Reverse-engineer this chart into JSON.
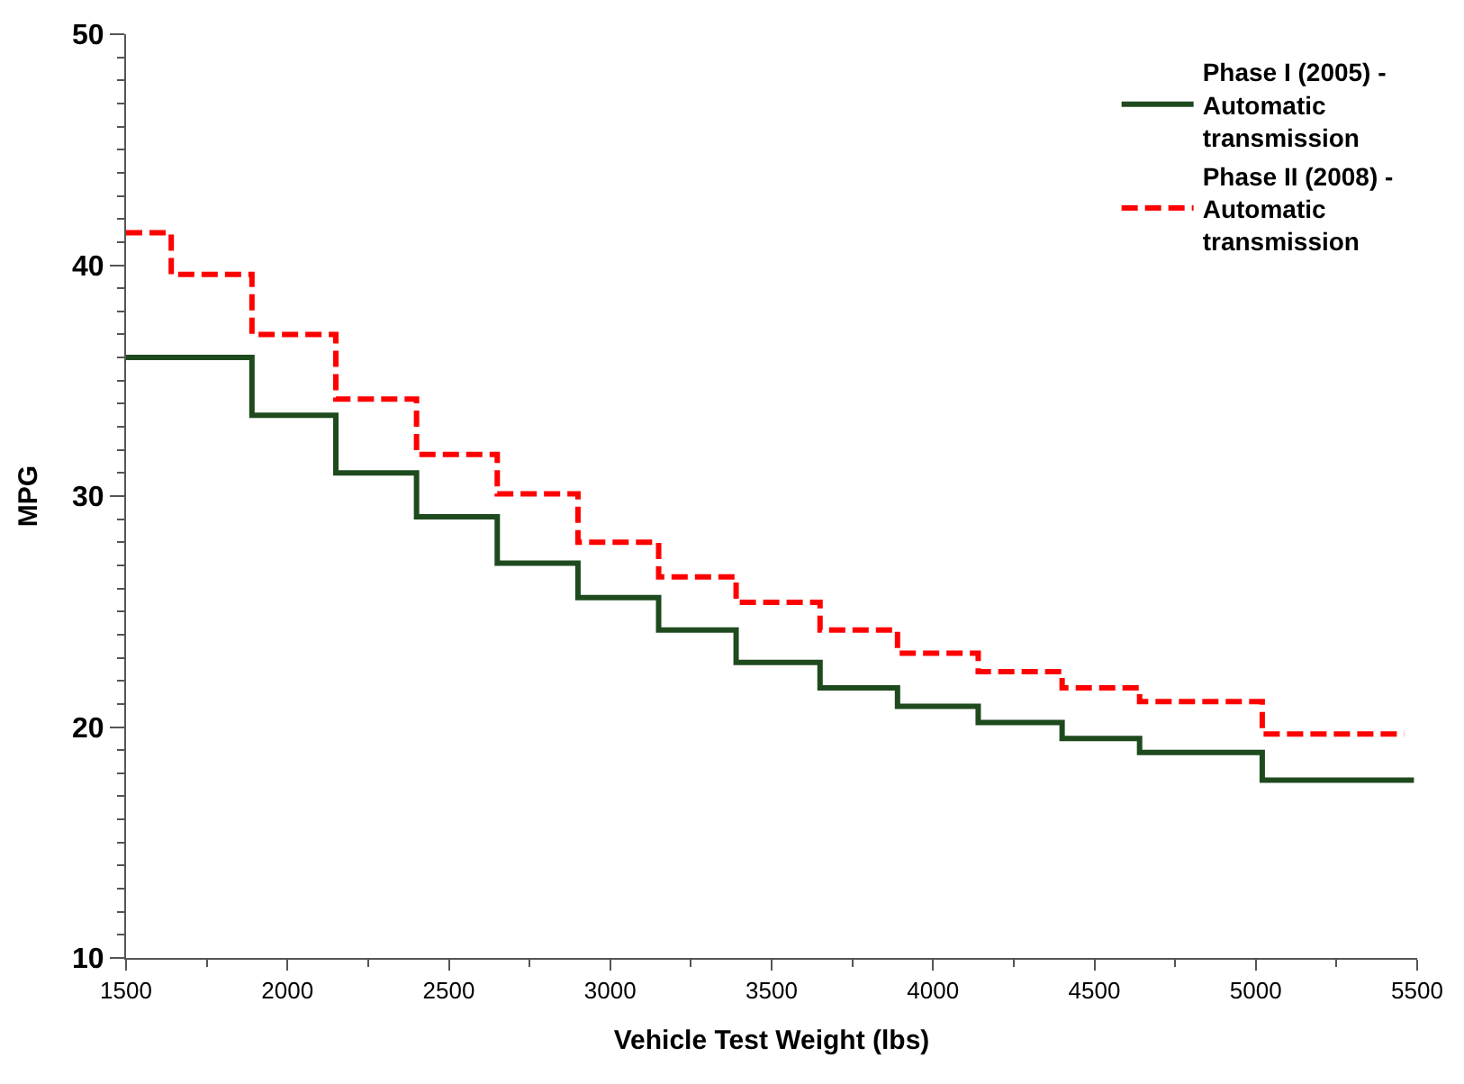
{
  "chart_data": {
    "type": "step",
    "xlabel": "Vehicle Test Weight (lbs)",
    "ylabel": "MPG",
    "xlim": [
      1500,
      5500
    ],
    "xticks": [
      1500,
      2000,
      2500,
      3000,
      3500,
      4000,
      4500,
      5000,
      5500
    ],
    "ylim": [
      10,
      50
    ],
    "yticks": [
      10,
      20,
      30,
      40,
      50
    ],
    "legend": "top right",
    "series": [
      {
        "name": "Phase I (2005) - Automatic transmission",
        "color": "#1e4a1e",
        "line_style": "solid",
        "x": [
          1500,
          1890,
          2150,
          2400,
          2650,
          2900,
          3150,
          3390,
          3650,
          3890,
          4140,
          4400,
          4640,
          5020,
          5490
        ],
        "values": [
          36.0,
          33.5,
          31.0,
          29.1,
          27.1,
          25.6,
          24.2,
          22.8,
          21.7,
          20.9,
          20.2,
          19.5,
          18.9,
          17.7,
          17.7
        ]
      },
      {
        "name": "Phase II (2008) - Automatic transmission",
        "color": "#ff0000",
        "line_style": "dashed",
        "x": [
          1500,
          1640,
          1890,
          2150,
          2400,
          2650,
          2900,
          3150,
          3390,
          3650,
          3890,
          4140,
          4400,
          4640,
          5020,
          5460
        ],
        "values": [
          41.4,
          39.6,
          37.0,
          34.2,
          31.8,
          30.1,
          28.0,
          26.5,
          25.4,
          24.2,
          23.2,
          22.4,
          21.7,
          21.1,
          19.7,
          19.7
        ]
      }
    ]
  }
}
